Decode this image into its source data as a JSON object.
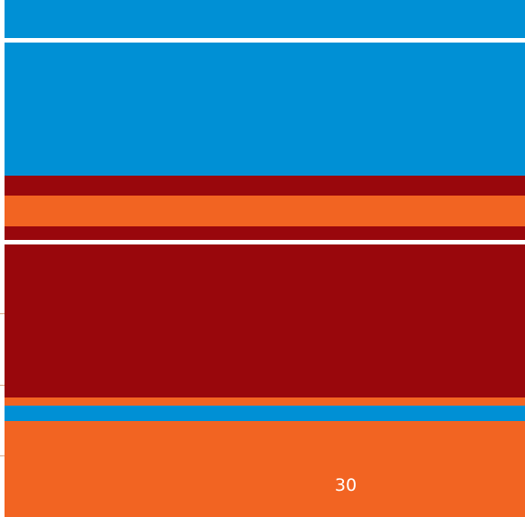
{
  "page": {
    "page_number": "30"
  },
  "colors": {
    "blue": "#0090d5",
    "dark_red": "#99070c",
    "orange": "#f26422",
    "white": "#ffffff"
  }
}
